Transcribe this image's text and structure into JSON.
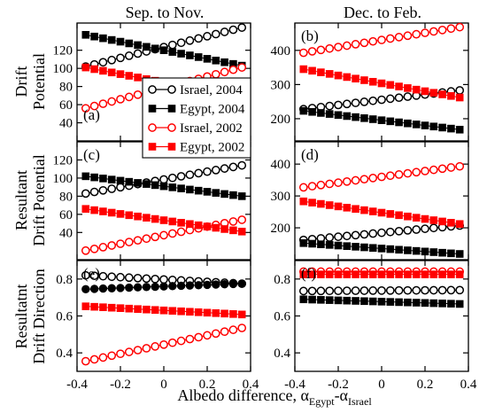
{
  "figure": {
    "col_titles": [
      "Sep. to Nov.",
      "Dec. to Feb."
    ],
    "row_titles": [
      [
        "Drift",
        "Potential"
      ],
      [
        "Resultant",
        "Drift Potential"
      ],
      [
        "Resultatnt",
        "Drift Direction"
      ]
    ],
    "xlabel_parts": {
      "main": "Albedo difference, α",
      "sub1": "Egypt",
      "mid": "-α",
      "sub2": "Israel"
    }
  },
  "chart_data": {
    "type": "scatter",
    "x_values": [
      -0.36,
      -0.32,
      -0.28,
      -0.24,
      -0.2,
      -0.16,
      -0.12,
      -0.08,
      -0.04,
      0.0,
      0.04,
      0.08,
      0.12,
      0.16,
      0.2,
      0.24,
      0.28,
      0.32,
      0.36
    ],
    "xlim": [
      -0.4,
      0.4
    ],
    "xticks": [
      -0.4,
      -0.2,
      0,
      0.2,
      0.4
    ],
    "xtick_labels": [
      "-0.4",
      "-0.2",
      "0",
      "0.2",
      "0.4"
    ],
    "legend": {
      "panel": "a",
      "entries": [
        {
          "label": "Israel, 2004",
          "color": "#000000",
          "marker": "circle-open"
        },
        {
          "label": "Egypt, 2004",
          "color": "#000000",
          "marker": "square-filled"
        },
        {
          "label": "Israel, 2002",
          "color": "#ff0000",
          "marker": "circle-open"
        },
        {
          "label": "Egypt, 2002",
          "color": "#ff0000",
          "marker": "square-filled"
        }
      ]
    },
    "panels": [
      {
        "id": "a",
        "label": "(a)",
        "ylim": [
          20,
          150
        ],
        "yticks": [
          40,
          60,
          80,
          100,
          120
        ],
        "series": [
          {
            "name": "Israel, 2004",
            "start": 102,
            "end": 145,
            "color": "#000000",
            "marker": "circle-open"
          },
          {
            "name": "Egypt, 2004",
            "start": 137,
            "end": 103,
            "color": "#000000",
            "marker": "square-filled"
          },
          {
            "name": "Israel, 2002",
            "start": 56,
            "end": 101,
            "color": "#ff0000",
            "marker": "circle-open"
          },
          {
            "name": "Egypt, 2002",
            "start": 101,
            "end": 68,
            "color": "#ff0000",
            "marker": "square-filled"
          }
        ]
      },
      {
        "id": "b",
        "label": "(b)",
        "ylim": [
          135,
          480
        ],
        "yticks": [
          200,
          300,
          400
        ],
        "series": [
          {
            "name": "Israel, 2004",
            "start": 228,
            "end": 283,
            "color": "#000000",
            "marker": "circle-open"
          },
          {
            "name": "Egypt, 2004",
            "start": 223,
            "end": 168,
            "color": "#000000",
            "marker": "square-filled"
          },
          {
            "name": "Israel, 2002",
            "start": 393,
            "end": 468,
            "color": "#ff0000",
            "marker": "circle-open"
          },
          {
            "name": "Egypt, 2002",
            "start": 345,
            "end": 262,
            "color": "#ff0000",
            "marker": "square-filled"
          }
        ]
      },
      {
        "id": "c",
        "label": "(c)",
        "ylim": [
          10,
          140
        ],
        "yticks": [
          40,
          60,
          80,
          100,
          120
        ],
        "series": [
          {
            "name": "Israel, 2004",
            "start": 83,
            "end": 114,
            "color": "#000000",
            "marker": "circle-open"
          },
          {
            "name": "Egypt, 2004",
            "start": 102,
            "end": 80,
            "color": "#000000",
            "marker": "square-filled"
          },
          {
            "name": "Israel, 2002",
            "start": 20,
            "end": 54,
            "color": "#ff0000",
            "marker": "circle-open"
          },
          {
            "name": "Egypt, 2002",
            "start": 66,
            "end": 41,
            "color": "#ff0000",
            "marker": "square-filled"
          }
        ]
      },
      {
        "id": "d",
        "label": "(d)",
        "ylim": [
          100,
          470
        ],
        "yticks": [
          200,
          300,
          400
        ],
        "series": [
          {
            "name": "Israel, 2004",
            "start": 162,
            "end": 207,
            "color": "#000000",
            "marker": "circle-open"
          },
          {
            "name": "Egypt, 2004",
            "start": 152,
            "end": 118,
            "color": "#000000",
            "marker": "square-filled"
          },
          {
            "name": "Israel, 2002",
            "start": 327,
            "end": 393,
            "color": "#ff0000",
            "marker": "circle-open"
          },
          {
            "name": "Egypt, 2002",
            "start": 283,
            "end": 212,
            "color": "#ff0000",
            "marker": "square-filled"
          }
        ]
      },
      {
        "id": "e",
        "label": "(e)",
        "ylim": [
          0.3,
          0.9
        ],
        "yticks": [
          0.4,
          0.6,
          0.8
        ],
        "ytick_labels": [
          "0.4",
          "0.6",
          "0.8"
        ],
        "series": [
          {
            "name": "Israel, 2004",
            "start": 0.82,
            "end": 0.775,
            "color": "#000000",
            "marker": "circle-open"
          },
          {
            "name": "Egypt, 2004",
            "start": 0.745,
            "end": 0.775,
            "color": "#000000",
            "marker": "circle-filled"
          },
          {
            "name": "Israel, 2002",
            "start": 0.355,
            "end": 0.535,
            "color": "#ff0000",
            "marker": "circle-open"
          },
          {
            "name": "Egypt, 2002",
            "start": 0.652,
            "end": 0.608,
            "color": "#ff0000",
            "marker": "square-filled"
          }
        ]
      },
      {
        "id": "f",
        "label": "(f)",
        "ylim": [
          0.3,
          0.9
        ],
        "yticks": [
          0.4,
          0.6,
          0.8
        ],
        "ytick_labels": [
          "0.4",
          "0.6",
          "0.8"
        ],
        "series": [
          {
            "name": "Israel, 2004",
            "start": 0.735,
            "end": 0.74,
            "color": "#000000",
            "marker": "circle-open"
          },
          {
            "name": "Egypt, 2004",
            "start": 0.69,
            "end": 0.665,
            "color": "#000000",
            "marker": "square-filled"
          },
          {
            "name": "Israel, 2002",
            "start": 0.84,
            "end": 0.84,
            "color": "#ff0000",
            "marker": "circle-open"
          },
          {
            "name": "Egypt, 2002",
            "start": 0.825,
            "end": 0.825,
            "color": "#ff0000",
            "marker": "square-filled"
          }
        ]
      }
    ]
  }
}
